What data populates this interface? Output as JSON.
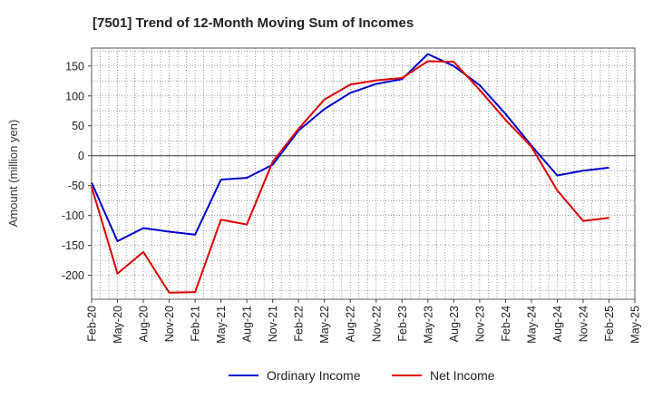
{
  "chart_data": {
    "type": "line",
    "title": "[7501]  Trend of 12-Month Moving Sum of Incomes",
    "ylabel": "Amount (million yen)",
    "xlabel": "",
    "ylim": [
      -240,
      180
    ],
    "yticks": [
      150,
      100,
      50,
      0,
      -50,
      -100,
      -150,
      -200
    ],
    "categories": [
      "Feb-20",
      "May-20",
      "Aug-20",
      "Nov-20",
      "Feb-21",
      "May-21",
      "Aug-21",
      "Nov-21",
      "Feb-22",
      "May-22",
      "Aug-22",
      "Nov-22",
      "Feb-23",
      "May-23",
      "Aug-23",
      "Nov-23",
      "Feb-24",
      "May-24",
      "Aug-24",
      "Nov-24",
      "Feb-25",
      "May-25"
    ],
    "series": [
      {
        "name": "Ordinary Income",
        "color": "#0000cc",
        "values": [
          -45,
          -143,
          -121,
          -127,
          -132,
          -40,
          -37,
          -15,
          42,
          78,
          105,
          120,
          128,
          170,
          150,
          118,
          70,
          17,
          -33,
          -25,
          -20,
          null
        ]
      },
      {
        "name": "Net Income",
        "color": "#dd0000",
        "values": [
          -52,
          -197,
          -161,
          -229,
          -228,
          -107,
          -115,
          -10,
          45,
          94,
          119,
          126,
          130,
          158,
          157,
          110,
          60,
          15,
          -58,
          -109,
          -104,
          null
        ]
      }
    ],
    "grid": true,
    "legend_position": "bottom"
  }
}
